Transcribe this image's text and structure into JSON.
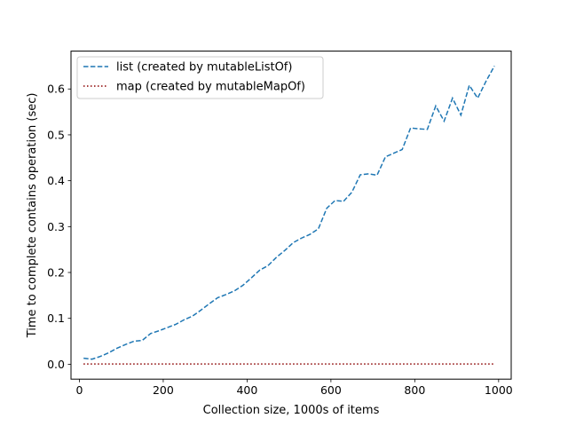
{
  "chart_data": {
    "type": "line",
    "xlabel": "Collection size, 1000s of items",
    "ylabel": "Time to complete contains operation (sec)",
    "xlim": [
      -20,
      1030
    ],
    "ylim": [
      -0.0325,
      0.6825
    ],
    "xticks": [
      0,
      200,
      400,
      600,
      800,
      1000
    ],
    "xtick_labels": [
      "0",
      "200",
      "400",
      "600",
      "800",
      "1000"
    ],
    "yticks": [
      0.0,
      0.1,
      0.2,
      0.3,
      0.4,
      0.5,
      0.6
    ],
    "ytick_labels": [
      "0.0",
      "0.1",
      "0.2",
      "0.3",
      "0.4",
      "0.5",
      "0.6"
    ],
    "grid": false,
    "legend_position": "upper-left",
    "series": [
      {
        "name": "list (created by mutableListOf)",
        "color": "#1f77b4",
        "style": "dashed",
        "x": [
          10,
          30,
          50,
          70,
          90,
          110,
          130,
          150,
          170,
          190,
          210,
          230,
          250,
          270,
          290,
          310,
          330,
          350,
          370,
          390,
          410,
          430,
          450,
          470,
          490,
          510,
          530,
          550,
          570,
          590,
          610,
          630,
          650,
          670,
          690,
          710,
          730,
          750,
          770,
          790,
          810,
          830,
          850,
          870,
          890,
          910,
          930,
          950,
          970,
          990
        ],
        "y": [
          0.013,
          0.011,
          0.017,
          0.025,
          0.035,
          0.043,
          0.05,
          0.052,
          0.067,
          0.073,
          0.08,
          0.087,
          0.097,
          0.105,
          0.118,
          0.132,
          0.145,
          0.152,
          0.16,
          0.172,
          0.188,
          0.205,
          0.215,
          0.233,
          0.248,
          0.265,
          0.275,
          0.283,
          0.295,
          0.34,
          0.357,
          0.355,
          0.375,
          0.413,
          0.415,
          0.412,
          0.452,
          0.46,
          0.468,
          0.515,
          0.513,
          0.512,
          0.563,
          0.53,
          0.58,
          0.543,
          0.608,
          0.58,
          0.617,
          0.65
        ]
      },
      {
        "name": "map (created by mutableMapOf)",
        "color": "#8b0000",
        "style": "dotted",
        "x": [
          10,
          30,
          50,
          70,
          90,
          110,
          130,
          150,
          170,
          190,
          210,
          230,
          250,
          270,
          290,
          310,
          330,
          350,
          370,
          390,
          410,
          430,
          450,
          470,
          490,
          510,
          530,
          550,
          570,
          590,
          610,
          630,
          650,
          670,
          690,
          710,
          730,
          750,
          770,
          790,
          810,
          830,
          850,
          870,
          890,
          910,
          930,
          950,
          970,
          990
        ],
        "y": [
          0.0005,
          0.0005,
          0.0005,
          0.0005,
          0.0005,
          0.0005,
          0.0005,
          0.0005,
          0.0005,
          0.0005,
          0.0005,
          0.0005,
          0.0005,
          0.0005,
          0.0005,
          0.0005,
          0.0005,
          0.0005,
          0.0005,
          0.0005,
          0.0005,
          0.0005,
          0.0005,
          0.0005,
          0.0005,
          0.0005,
          0.0005,
          0.0005,
          0.0005,
          0.0005,
          0.0005,
          0.0005,
          0.0005,
          0.0005,
          0.0005,
          0.0005,
          0.0005,
          0.0005,
          0.0005,
          0.0005,
          0.0005,
          0.0005,
          0.0005,
          0.0005,
          0.0005,
          0.0005,
          0.0005,
          0.0005,
          0.0005,
          0.0005
        ]
      }
    ]
  }
}
